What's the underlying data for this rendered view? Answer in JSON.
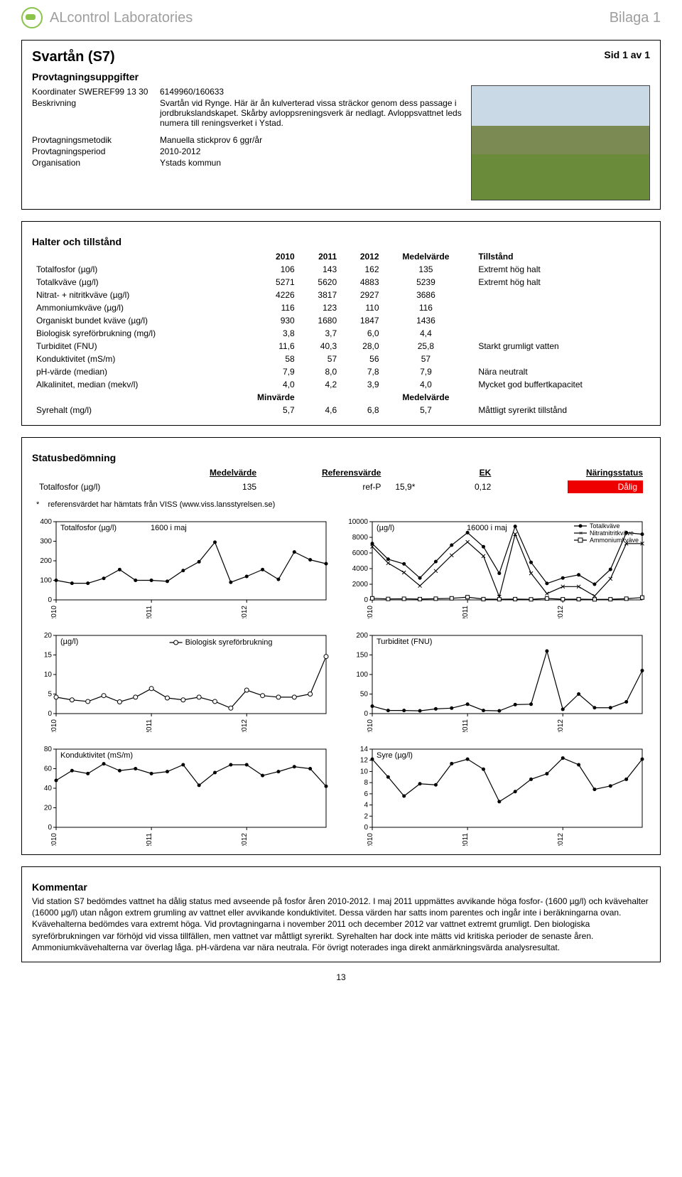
{
  "header": {
    "lab_name": "ALcontrol Laboratories",
    "attachment_label": "Bilaga 1"
  },
  "title_box": {
    "title": "Svartån (S7)",
    "page_label": "Sid 1 av 1",
    "section_info": "Provtagningsuppgifter",
    "coord_label": "Koordinater SWEREF99 13 30",
    "coord_value": "6149960/160633",
    "desc_label": "Beskrivning",
    "desc_value": "Svartån vid Rynge. Här är ån kulverterad vissa sträckor genom dess passage i jordbrukslandskapet. Skårby avloppsreningsverk är nedlagt. Avloppsvattnet leds numera till reningsverket i Ystad.",
    "method_label": "Provtagningsmetodik",
    "method_value": "Manuella stickprov 6 ggr/år",
    "period_label": "Provtagningsperiod",
    "period_value": "2010-2012",
    "org_label": "Organisation",
    "org_value": "Ystads kommun"
  },
  "halter": {
    "title": "Halter och tillstånd",
    "cols": [
      "",
      "2010",
      "2011",
      "2012",
      "Medelvärde",
      "Tillstånd"
    ],
    "rows": [
      {
        "p": "Totalfosfor (µg/l)",
        "v": [
          "106",
          "143",
          "162"
        ],
        "m": "135",
        "s": "Extremt hög halt"
      },
      {
        "p": "Totalkväve (µg/l)",
        "v": [
          "5271",
          "5620",
          "4883"
        ],
        "m": "5239",
        "s": "Extremt hög halt"
      },
      {
        "p": "Nitrat- + nitritkväve (µg/l)",
        "v": [
          "4226",
          "3817",
          "2927"
        ],
        "m": "3686",
        "s": ""
      },
      {
        "p": "Ammoniumkväve (µg/l)",
        "v": [
          "116",
          "123",
          "110"
        ],
        "m": "116",
        "s": ""
      },
      {
        "p": "Organiskt bundet kväve (µg/l)",
        "v": [
          "930",
          "1680",
          "1847"
        ],
        "m": "1436",
        "s": ""
      },
      {
        "p": "Biologisk syreförbrukning (mg/l)",
        "v": [
          "3,8",
          "3,7",
          "6,0"
        ],
        "m": "4,4",
        "s": ""
      },
      {
        "p": "Turbiditet (FNU)",
        "v": [
          "11,6",
          "40,3",
          "28,0"
        ],
        "m": "25,8",
        "s": "Starkt grumligt vatten"
      },
      {
        "p": "Konduktivitet (mS/m)",
        "v": [
          "58",
          "57",
          "56"
        ],
        "m": "57",
        "s": ""
      },
      {
        "p": "pH-värde (median)",
        "v": [
          "7,9",
          "8,0",
          "7,8"
        ],
        "m": "7,9",
        "s": "Nära neutralt"
      },
      {
        "p": "Alkalinitet, median (mekv/l)",
        "v": [
          "4,0",
          "4,2",
          "3,9"
        ],
        "m": "4,0",
        "s": "Mycket god buffertkapacitet"
      }
    ],
    "min_row_head": [
      "",
      "Minvärde",
      "",
      "",
      "Medelvärde",
      ""
    ],
    "syrehalt": {
      "p": "Syrehalt (mg/l)",
      "v": [
        "5,7",
        "4,6",
        "6,8"
      ],
      "m": "5,7",
      "s": "Måttligt syrerikt tillstånd"
    }
  },
  "status": {
    "title": "Statusbedömning",
    "cols": [
      "",
      "Medelvärde",
      "Referensvärde",
      "",
      "EK",
      "Näringsstatus"
    ],
    "row": {
      "p": "Totalfosfor (µg/l)",
      "m": "135",
      "ref_label": "ref-P",
      "ref_val": "15,9*",
      "ek": "0,12",
      "status": "Dålig"
    },
    "ref_note_marker": "*",
    "ref_note": "referensvärdet har hämtats från VISS (www.viss.lansstyrelsen.se)"
  },
  "charts": {
    "x_years": [
      "2010",
      "2011",
      "2012"
    ],
    "totalfosfor": {
      "title": "Totalfosfor (µg/l)",
      "note": "1600 i maj",
      "ymax": 400,
      "ystep": 100,
      "series": [
        [
          0,
          100
        ],
        [
          1,
          85
        ],
        [
          2,
          85
        ],
        [
          3,
          110
        ],
        [
          4,
          155
        ],
        [
          5,
          100
        ],
        [
          6,
          100
        ],
        [
          7,
          95
        ],
        [
          8,
          150
        ],
        [
          9,
          195
        ],
        [
          10,
          295
        ],
        [
          11,
          90
        ],
        [
          12,
          120
        ],
        [
          13,
          155
        ],
        [
          14,
          105
        ],
        [
          15,
          245
        ],
        [
          16,
          205
        ],
        [
          17,
          185
        ]
      ]
    },
    "kvave": {
      "title_left": "(µg/l)",
      "note": "16000 i maj",
      "ymax": 10000,
      "ystep": 2000,
      "legend": [
        {
          "label": "Totalkväve",
          "marker": "solid"
        },
        {
          "label": "Nitratnitritkväve",
          "marker": "x"
        },
        {
          "label": "Ammoniumkväve",
          "marker": "open"
        }
      ],
      "tot": [
        [
          0,
          7200
        ],
        [
          1,
          5200
        ],
        [
          2,
          4600
        ],
        [
          3,
          2800
        ],
        [
          4,
          4900
        ],
        [
          5,
          7000
        ],
        [
          6,
          8600
        ],
        [
          7,
          6800
        ],
        [
          8,
          3400
        ],
        [
          9,
          9400
        ],
        [
          10,
          4800
        ],
        [
          11,
          2100
        ],
        [
          12,
          2800
        ],
        [
          13,
          3200
        ],
        [
          14,
          2000
        ],
        [
          15,
          3900
        ],
        [
          16,
          8600
        ],
        [
          17,
          8400
        ]
      ],
      "nit": [
        [
          0,
          6800
        ],
        [
          1,
          4700
        ],
        [
          2,
          3500
        ],
        [
          3,
          1800
        ],
        [
          4,
          3700
        ],
        [
          5,
          5700
        ],
        [
          6,
          7400
        ],
        [
          7,
          5600
        ],
        [
          8,
          400
        ],
        [
          9,
          8400
        ],
        [
          10,
          3400
        ],
        [
          11,
          800
        ],
        [
          12,
          1700
        ],
        [
          13,
          1700
        ],
        [
          14,
          500
        ],
        [
          15,
          2700
        ],
        [
          16,
          7200
        ],
        [
          17,
          7200
        ]
      ],
      "amm": [
        [
          0,
          200
        ],
        [
          1,
          120
        ],
        [
          2,
          140
        ],
        [
          3,
          100
        ],
        [
          4,
          150
        ],
        [
          5,
          200
        ],
        [
          6,
          350
        ],
        [
          7,
          100
        ],
        [
          8,
          80
        ],
        [
          9,
          100
        ],
        [
          10,
          70
        ],
        [
          11,
          180
        ],
        [
          12,
          80
        ],
        [
          13,
          90
        ],
        [
          14,
          60
        ],
        [
          15,
          80
        ],
        [
          16,
          150
        ],
        [
          17,
          300
        ]
      ]
    },
    "bod": {
      "title_left": "(µg/l)",
      "legend_label": "Biologisk syreförbrukning",
      "ymax": 20,
      "ystep": 5,
      "series": [
        [
          0,
          4.2
        ],
        [
          1,
          3.5
        ],
        [
          2,
          3.1
        ],
        [
          3,
          4.6
        ],
        [
          4,
          3
        ],
        [
          5,
          4.2
        ],
        [
          6,
          6.4
        ],
        [
          7,
          4
        ],
        [
          8,
          3.5
        ],
        [
          9,
          4.2
        ],
        [
          10,
          3.1
        ],
        [
          11,
          1.4
        ],
        [
          12,
          6
        ],
        [
          13,
          4.6
        ],
        [
          14,
          4.2
        ],
        [
          15,
          4.2
        ],
        [
          16,
          5
        ],
        [
          17,
          14.6
        ]
      ]
    },
    "turb": {
      "title": "Turbiditet (FNU)",
      "ymax": 200,
      "ystep": 50,
      "series": [
        [
          0,
          19
        ],
        [
          1,
          8
        ],
        [
          2,
          8
        ],
        [
          3,
          7
        ],
        [
          4,
          12
        ],
        [
          5,
          14
        ],
        [
          6,
          24
        ],
        [
          7,
          8
        ],
        [
          8,
          7
        ],
        [
          9,
          23
        ],
        [
          10,
          24
        ],
        [
          11,
          160
        ],
        [
          12,
          11
        ],
        [
          13,
          50
        ],
        [
          14,
          15
        ],
        [
          15,
          15
        ],
        [
          16,
          30
        ],
        [
          17,
          110
        ]
      ]
    },
    "kond": {
      "title": "Konduktivitet (mS/m)",
      "ymax": 80,
      "ystep": 20,
      "series": [
        [
          0,
          48
        ],
        [
          1,
          58
        ],
        [
          2,
          55
        ],
        [
          3,
          65
        ],
        [
          4,
          58
        ],
        [
          5,
          60
        ],
        [
          6,
          55
        ],
        [
          7,
          57
        ],
        [
          8,
          64
        ],
        [
          9,
          43
        ],
        [
          10,
          56
        ],
        [
          11,
          64
        ],
        [
          12,
          64
        ],
        [
          13,
          53
        ],
        [
          14,
          57
        ],
        [
          15,
          62
        ],
        [
          16,
          60
        ],
        [
          17,
          42
        ]
      ]
    },
    "syre": {
      "title": "Syre (µg/l)",
      "ymax": 14,
      "ystep": 2,
      "series": [
        [
          0,
          12.2
        ],
        [
          1,
          9
        ],
        [
          2,
          5.6
        ],
        [
          3,
          7.8
        ],
        [
          4,
          7.6
        ],
        [
          5,
          11.4
        ],
        [
          6,
          12.2
        ],
        [
          7,
          10.4
        ],
        [
          8,
          4.6
        ],
        [
          9,
          6.4
        ],
        [
          10,
          8.6
        ],
        [
          11,
          9.6
        ],
        [
          12,
          12.4
        ],
        [
          13,
          11.2
        ],
        [
          14,
          6.8
        ],
        [
          15,
          7.4
        ],
        [
          16,
          8.6
        ],
        [
          17,
          12.2
        ]
      ]
    }
  },
  "kommentar": {
    "title": "Kommentar",
    "text": "Vid station S7 bedömdes vattnet ha dålig status med avseende på fosfor åren 2010-2012. I maj 2011 uppmättes avvikande höga fosfor- (1600 µg/l) och kvävehalter (16000 µg/l) utan någon extrem grumling av vattnet eller avvikande konduktivitet. Dessa värden har satts inom parentes och ingår inte i beräkningarna ovan.  Kvävehalterna bedömdes vara extremt höga. Vid provtagningarna i november 2011 och december 2012 var vattnet extremt grumligt. Den biologiska syreförbrukningen var förhöjd vid vissa tillfällen, men vattnet var måttligt syrerikt. Syrehalten har dock inte mätts vid kritiska perioder de senaste åren. Ammoniumkvävehalterna var överlag låga. pH-värdena var nära neutrala. För övrigt noterades inga direkt anmärkningsvärda analysresultat."
  },
  "page_number": "13"
}
